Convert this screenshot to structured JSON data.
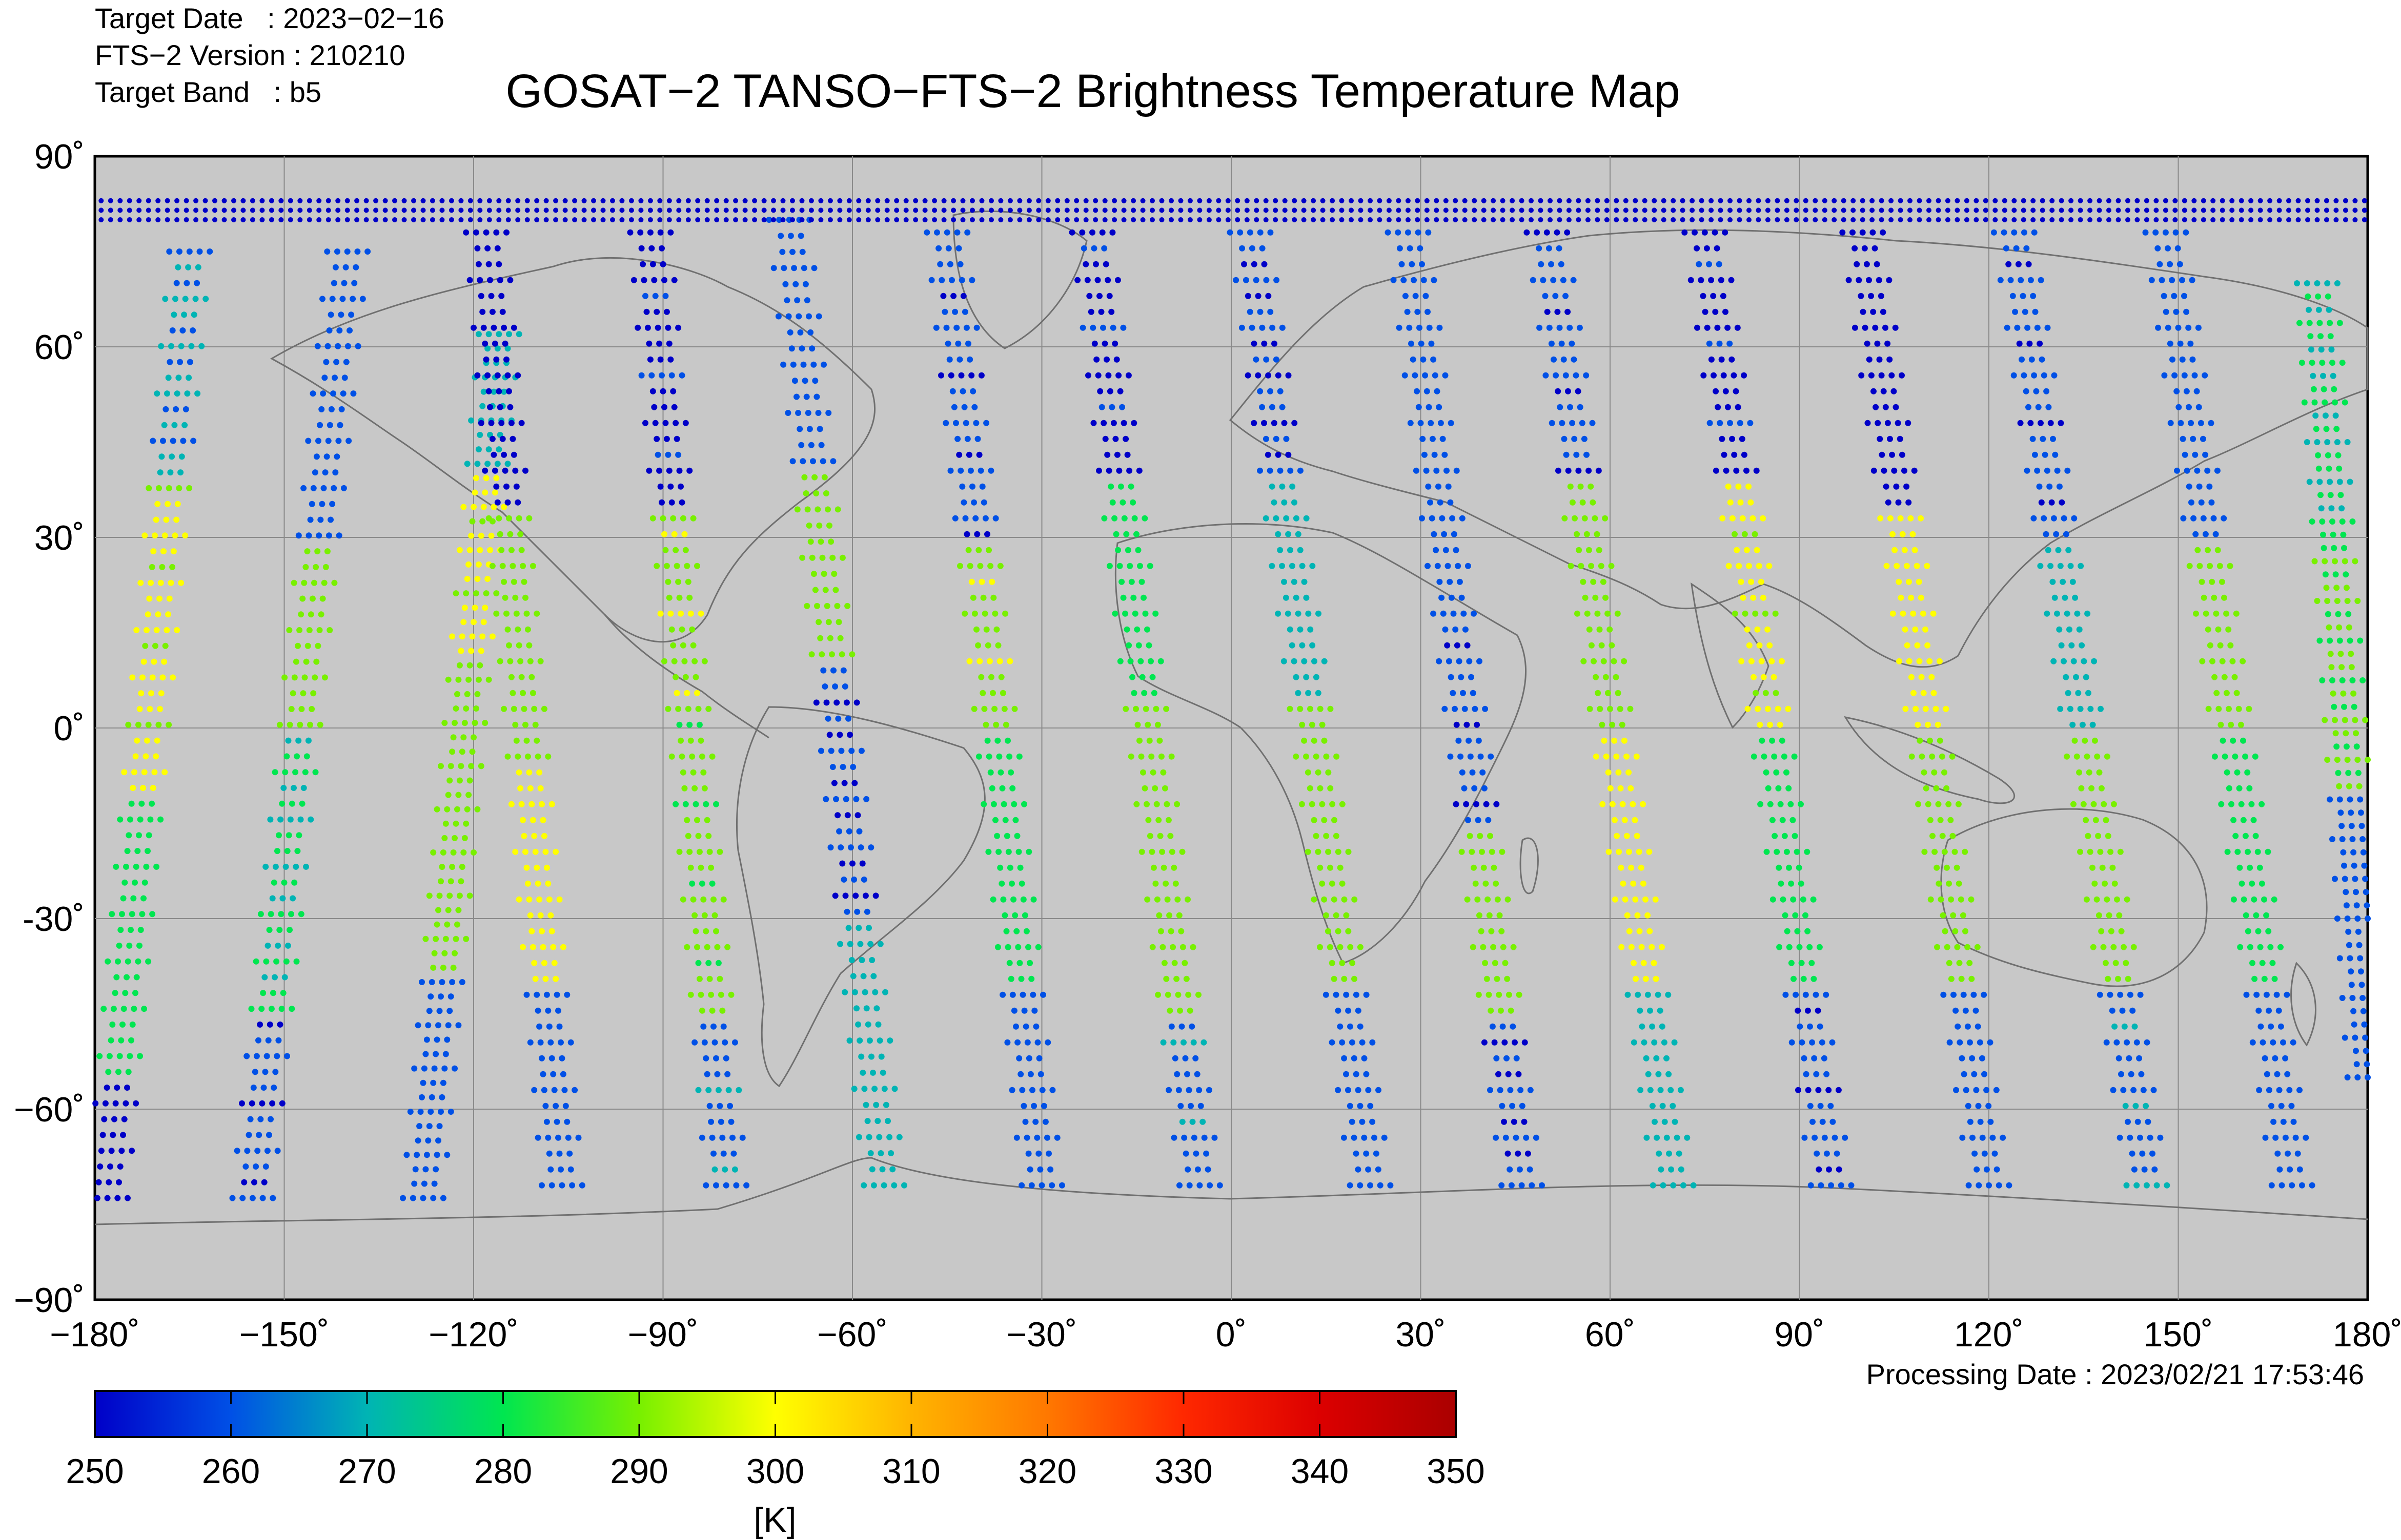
{
  "header": {
    "target_date": "Target Date   : 2023−02−16",
    "version": "FTS−2 Version : 210210",
    "target_band": "Target Band   : b5"
  },
  "title": "GOSAT−2 TANSO−FTS−2 Brightness Temperature Map",
  "processing_date": "Processing Date : 2023/02/21 17:53:46",
  "colors": {
    "map_background": "#c8c8c8",
    "coastline": "#707070",
    "gridline": "#8a8a8a",
    "colormap": [
      "#0000c8",
      "#0050e6",
      "#00b4b4",
      "#00e650",
      "#78f000",
      "#ffff00",
      "#ffb400",
      "#ff7800",
      "#ff2800",
      "#dc0000",
      "#aa0000"
    ]
  },
  "chart_data": {
    "type": "scatter",
    "projection": "equirectangular",
    "xlim": [
      -180,
      180
    ],
    "ylim": [
      -90,
      90
    ],
    "x_ticks": [
      "−180˚",
      "−150˚",
      "−120˚",
      "−90˚",
      "−60˚",
      "−30˚",
      "0˚",
      "30˚",
      "60˚",
      "90˚",
      "120˚",
      "150˚",
      "180˚"
    ],
    "y_ticks": [
      "90˚",
      "60˚",
      "30˚",
      "0˚",
      "-30˚",
      "−60˚",
      "−90˚"
    ],
    "grid": true,
    "colorbar": {
      "min": 250,
      "max": 350,
      "ticks": [
        "250",
        "260",
        "270",
        "280",
        "290",
        "300",
        "310",
        "320",
        "330",
        "340",
        "350"
      ],
      "unit": "[K]"
    },
    "polar_band": {
      "lat_top": 84,
      "lat_bottom": 80,
      "value": 252
    },
    "swaths": [
      {
        "lon_start": -178,
        "lat_start": -74,
        "lon_end": -165,
        "lat_end": 75,
        "segments": [
          [
            -74,
            -55,
            253
          ],
          [
            -55,
            -10,
            278
          ],
          [
            -10,
            40,
            296
          ],
          [
            40,
            75,
            265
          ]
        ]
      },
      {
        "lon_start": -155,
        "lat_start": -74,
        "lon_end": -140,
        "lat_end": 75,
        "segments": [
          [
            -74,
            -45,
            256
          ],
          [
            -45,
            0,
            275
          ],
          [
            0,
            30,
            292
          ],
          [
            30,
            75,
            258
          ]
        ]
      },
      {
        "lon_start": -128,
        "lat_start": -74,
        "lon_end": -116,
        "lat_end": 62,
        "segments": [
          [
            -74,
            -40,
            262
          ],
          [
            -40,
            10,
            288
          ],
          [
            10,
            40,
            296
          ],
          [
            40,
            62,
            270
          ]
        ]
      },
      {
        "lon_start": -106,
        "lat_start": -72,
        "lon_end": -118,
        "lat_end": 78,
        "segments": [
          [
            -72,
            -40,
            262
          ],
          [
            -40,
            -5,
            300
          ],
          [
            -5,
            35,
            288
          ],
          [
            35,
            78,
            252
          ]
        ]
      },
      {
        "lon_start": -80,
        "lat_start": -72,
        "lon_end": -92,
        "lat_end": 78,
        "segments": [
          [
            -72,
            -45,
            264
          ],
          [
            -45,
            5,
            286
          ],
          [
            5,
            35,
            294
          ],
          [
            35,
            78,
            254
          ]
        ]
      },
      {
        "lon_start": -55,
        "lat_start": -72,
        "lon_end": -70,
        "lat_end": 80,
        "segments": [
          [
            -72,
            -30,
            268
          ],
          [
            -30,
            10,
            255
          ],
          [
            10,
            40,
            292
          ],
          [
            40,
            80,
            258
          ]
        ]
      },
      {
        "lon_start": -30,
        "lat_start": -72,
        "lon_end": -45,
        "lat_end": 78,
        "segments": [
          [
            -72,
            -40,
            262
          ],
          [
            -40,
            0,
            280
          ],
          [
            0,
            30,
            294
          ],
          [
            30,
            78,
            256
          ]
        ]
      },
      {
        "lon_start": -5,
        "lat_start": -72,
        "lon_end": -22,
        "lat_end": 78,
        "segments": [
          [
            -72,
            -45,
            264
          ],
          [
            -45,
            5,
            292
          ],
          [
            5,
            40,
            282
          ],
          [
            40,
            78,
            254
          ]
        ]
      },
      {
        "lon_start": 22,
        "lat_start": -72,
        "lon_end": 3,
        "lat_end": 78,
        "segments": [
          [
            -72,
            -40,
            262
          ],
          [
            -40,
            5,
            290
          ],
          [
            5,
            40,
            270
          ],
          [
            40,
            78,
            255
          ]
        ]
      },
      {
        "lon_start": 46,
        "lat_start": -72,
        "lon_end": 28,
        "lat_end": 78,
        "segments": [
          [
            -72,
            -45,
            255
          ],
          [
            -45,
            -15,
            288
          ],
          [
            -15,
            20,
            256
          ],
          [
            20,
            78,
            258
          ]
        ]
      },
      {
        "lon_start": 70,
        "lat_start": -72,
        "lon_end": 50,
        "lat_end": 78,
        "segments": [
          [
            -72,
            -40,
            270
          ],
          [
            -40,
            0,
            298
          ],
          [
            0,
            40,
            292
          ],
          [
            40,
            78,
            256
          ]
        ]
      },
      {
        "lon_start": 95,
        "lat_start": -72,
        "lon_end": 75,
        "lat_end": 78,
        "segments": [
          [
            -72,
            -40,
            256
          ],
          [
            -40,
            0,
            283
          ],
          [
            0,
            40,
            296
          ],
          [
            40,
            78,
            254
          ]
        ]
      },
      {
        "lon_start": 120,
        "lat_start": -72,
        "lon_end": 100,
        "lat_end": 78,
        "segments": [
          [
            -72,
            -40,
            262
          ],
          [
            -40,
            0,
            288
          ],
          [
            0,
            35,
            300
          ],
          [
            35,
            78,
            253
          ]
        ]
      },
      {
        "lon_start": 145,
        "lat_start": -72,
        "lon_end": 124,
        "lat_end": 78,
        "segments": [
          [
            -72,
            -40,
            264
          ],
          [
            -40,
            0,
            290
          ],
          [
            0,
            30,
            270
          ],
          [
            30,
            78,
            256
          ]
        ]
      },
      {
        "lon_start": 168,
        "lat_start": -72,
        "lon_end": 148,
        "lat_end": 78,
        "segments": [
          [
            -72,
            -40,
            262
          ],
          [
            -40,
            0,
            278
          ],
          [
            0,
            30,
            293
          ],
          [
            30,
            78,
            257
          ]
        ]
      },
      {
        "lon_start": 180,
        "lat_start": -55,
        "lon_end": 172,
        "lat_end": 70,
        "segments": [
          [
            -55,
            -10,
            258
          ],
          [
            -10,
            30,
            285
          ],
          [
            30,
            70,
            275
          ]
        ]
      }
    ]
  }
}
